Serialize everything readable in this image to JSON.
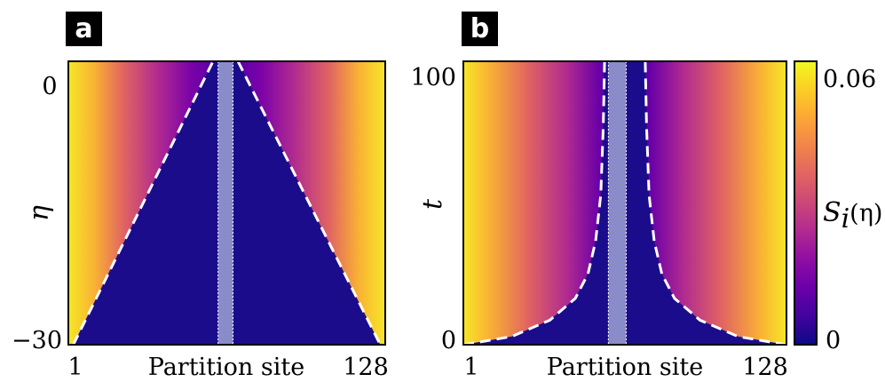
{
  "chart_data": [
    {
      "panel": "a",
      "type": "heatmap",
      "xlabel": "Partition site",
      "ylabel": "η",
      "x_ticks": [
        "1",
        "128"
      ],
      "y_ticks": [
        "0",
        "−30"
      ],
      "xlim": [
        1,
        128
      ],
      "ylim": [
        -30,
        2
      ],
      "partition_band": [
        61,
        67
      ],
      "boundary": {
        "shape": "linear",
        "left": [
          [
            3,
            -30
          ],
          [
            59,
            2
          ]
        ],
        "right": [
          [
            69,
            2
          ],
          [
            126,
            -30
          ]
        ]
      }
    },
    {
      "panel": "b",
      "type": "heatmap",
      "xlabel": "Partition site",
      "ylabel": "t",
      "x_ticks": [
        "1",
        "128"
      ],
      "y_ticks": [
        "100",
        "0"
      ],
      "xlim": [
        1,
        128
      ],
      "ylim": [
        0,
        104
      ],
      "partition_band": [
        58,
        65
      ],
      "boundary": {
        "shape": "hyperbolic",
        "left": [
          [
            1,
            0
          ],
          [
            20,
            3
          ],
          [
            35,
            9
          ],
          [
            45,
            17
          ],
          [
            50,
            26
          ],
          [
            53,
            38
          ],
          [
            55,
            55
          ],
          [
            56,
            80
          ],
          [
            56.5,
            104
          ]
        ],
        "right": [
          [
            128,
            0
          ],
          [
            109,
            3
          ],
          [
            94,
            9
          ],
          [
            84,
            17
          ],
          [
            79,
            26
          ],
          [
            76,
            38
          ],
          [
            74,
            55
          ],
          [
            73,
            80
          ],
          [
            72.5,
            104
          ]
        ]
      }
    }
  ],
  "colorbar": {
    "label": "S_i(η)",
    "label_main": "S",
    "label_sub": "i",
    "label_rest": "(η)",
    "min_label": "0",
    "max_label": "0.06",
    "min": 0,
    "max": 0.06,
    "colors": [
      "#0d0887",
      "#41049d",
      "#6a00a8",
      "#8f0da4",
      "#b12a90",
      "#cc4778",
      "#e16462",
      "#f2844b",
      "#fca636",
      "#fcce25",
      "#f0f921"
    ]
  }
}
